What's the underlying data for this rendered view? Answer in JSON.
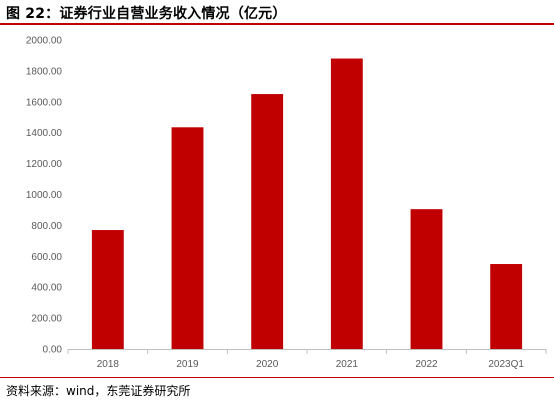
{
  "figure": {
    "title": "图 22：证券行业自营业务收入情况（亿元）",
    "source": "资料来源：wind，东莞证券研究所"
  },
  "colors": {
    "bar": "#c00000",
    "rule": "#c00000",
    "axis": "#bfbfbf",
    "tick_text": "#595959"
  },
  "chart_data": {
    "type": "bar",
    "categories": [
      "2018",
      "2019",
      "2020",
      "2021",
      "2022",
      "2023Q1"
    ],
    "values": [
      770,
      1435,
      1650,
      1880,
      905,
      550
    ],
    "ylim": [
      0,
      2000
    ],
    "yticks": [
      0,
      200,
      400,
      600,
      800,
      1000,
      1200,
      1400,
      1600,
      1800,
      2000
    ],
    "ytick_labels": [
      "0.00",
      "200.00",
      "400.00",
      "600.00",
      "800.00",
      "1000.00",
      "1200.00",
      "1400.00",
      "1600.00",
      "1800.00",
      "2000.00"
    ],
    "grid": false,
    "legend": "none"
  }
}
